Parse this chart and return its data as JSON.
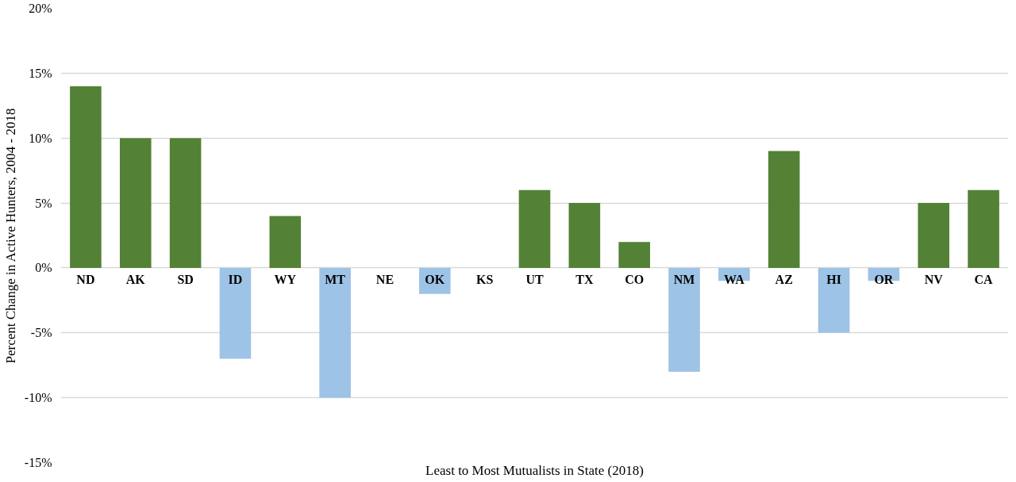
{
  "chart_data": {
    "type": "bar",
    "xlabel": "Least to Most Mutualists in State (2018)",
    "ylabel": "Percent Change in Active Hunters, 2004 - 2018",
    "categories": [
      "ND",
      "AK",
      "SD",
      "ID",
      "WY",
      "MT",
      "NE",
      "OK",
      "KS",
      "UT",
      "TX",
      "CO",
      "NM",
      "WA",
      "AZ",
      "HI",
      "OR",
      "NV",
      "CA"
    ],
    "values": [
      14,
      10,
      10,
      -7,
      4,
      -10,
      0,
      -2,
      0,
      6,
      5,
      2,
      -8,
      -1,
      9,
      -5,
      -1,
      5,
      6
    ],
    "colors": [
      "#538135",
      "#538135",
      "#538135",
      "#9dc3e6",
      "#538135",
      "#9dc3e6",
      "#538135",
      "#9dc3e6",
      "#538135",
      "#538135",
      "#538135",
      "#538135",
      "#9dc3e6",
      "#9dc3e6",
      "#538135",
      "#9dc3e6",
      "#9dc3e6",
      "#538135",
      "#538135"
    ],
    "ylim": [
      -15,
      20
    ],
    "yticks": [
      {
        "value": -15,
        "label": "-15%"
      },
      {
        "value": -10,
        "label": "-10%"
      },
      {
        "value": -5,
        "label": "-5%"
      },
      {
        "value": 0,
        "label": "0%"
      },
      {
        "value": 5,
        "label": "5%"
      },
      {
        "value": 10,
        "label": "10%"
      },
      {
        "value": 15,
        "label": "15%"
      },
      {
        "value": 20,
        "label": "20%"
      }
    ],
    "grid": "y"
  }
}
